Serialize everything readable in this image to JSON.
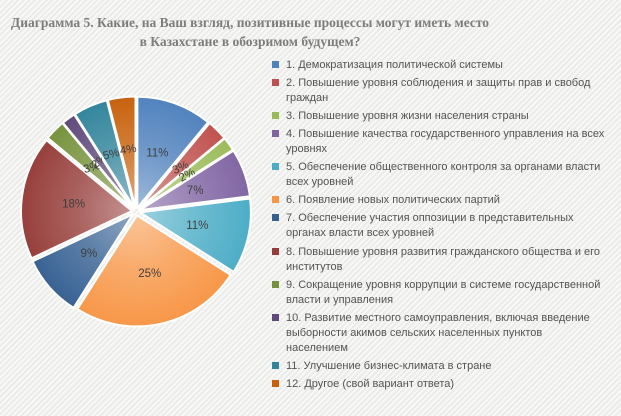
{
  "title": "Диаграмма 5. Какие, на Ваш взгляд, позитивные процессы могут иметь место в Казахстане в обозримом будущем?",
  "chart_data": {
    "type": "pie",
    "title": "Диаграмма 5. Какие, на Ваш взгляд, позитивные процессы могут иметь место в Казахстане в обозримом будущем?",
    "legend_position": "right",
    "values_unit": "%",
    "slices": [
      {
        "label": "1. Демократизация политической системы",
        "value": 11,
        "data_label": "11%",
        "color": "#4F81BD"
      },
      {
        "label": "2. Повышение уровня соблюдения и защиты прав и свобод граждан",
        "value": 3,
        "data_label": "3%",
        "color": "#C0504D"
      },
      {
        "label": "3. Повышение уровня жизни населения страны",
        "value": 2,
        "data_label": "2%",
        "color": "#9BBB59"
      },
      {
        "label": "4. Повышение качества государственного управления на всех уровнях",
        "value": 7,
        "data_label": "7%",
        "color": "#8064A2"
      },
      {
        "label": "5. Обеспечение общественного контроля за органами власти всех уровней",
        "value": 11,
        "data_label": "11%",
        "color": "#4BACC6"
      },
      {
        "label": "6. Появление новых политических партий",
        "value": 25,
        "data_label": "25%",
        "color": "#F79646"
      },
      {
        "label": "7. Обеспечение участия оппозиции в представительных органах власти всех уровней",
        "value": 9,
        "data_label": "9%",
        "color": "#366092"
      },
      {
        "label": "8.  Повышение уровня развития гражданского общества и его институтов",
        "value": 18,
        "data_label": "18%",
        "color": "#963D3A"
      },
      {
        "label": "9. Сокращение уровня коррупции в системе государственной власти и управления",
        "value": 3,
        "data_label": "3%",
        "color": "#76923C"
      },
      {
        "label": "10. Развитие местного самоуправления, включая введение выборности акимов сельских населенных пунктов населением",
        "value": 2,
        "data_label": "2%",
        "color": "#5F497A"
      },
      {
        "label": "11. Улучшение бизнес-климата в стране",
        "value": 5,
        "data_label": "5%",
        "color": "#31849B"
      },
      {
        "label": "12. Другое (свой вариант ответа)",
        "value": 4,
        "data_label": "4%",
        "color": "#C7600B"
      }
    ]
  }
}
